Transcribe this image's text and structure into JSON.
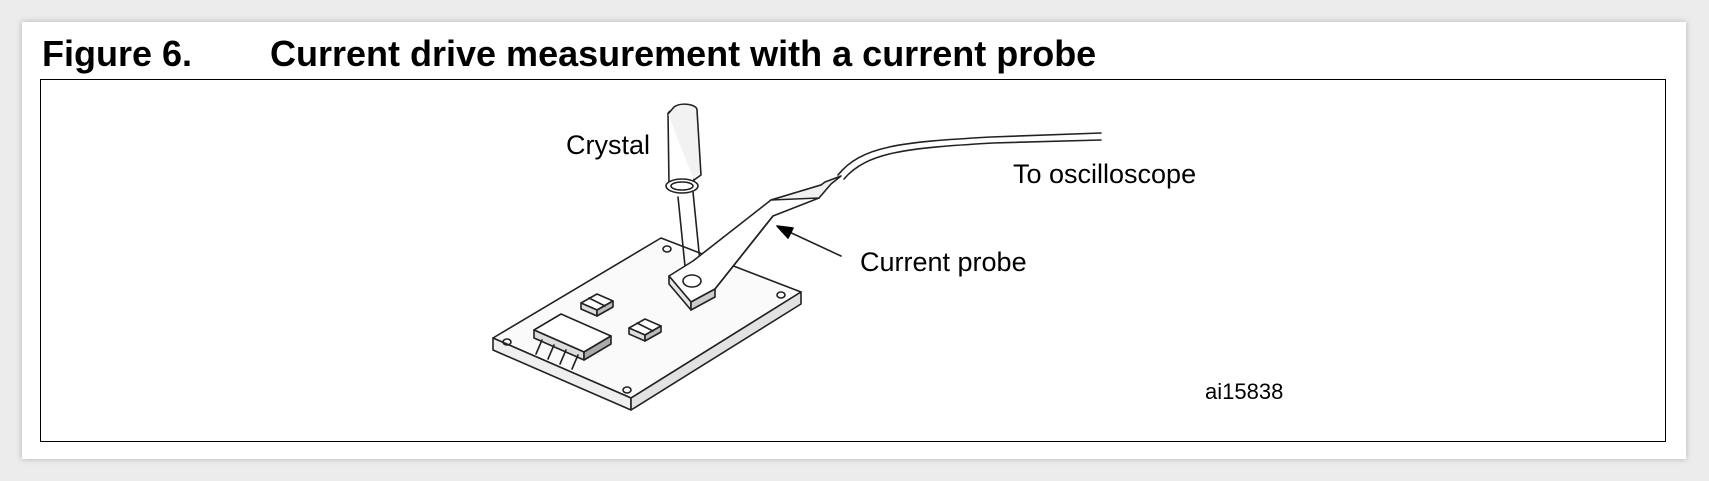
{
  "figure": {
    "number": "Figure 6.",
    "title": "Current drive measurement with a current probe"
  },
  "diagram": {
    "labels": {
      "crystal": "Crystal",
      "oscilloscope": "To oscilloscope",
      "probe": "Current probe"
    },
    "reference_code": "ai15838"
  }
}
